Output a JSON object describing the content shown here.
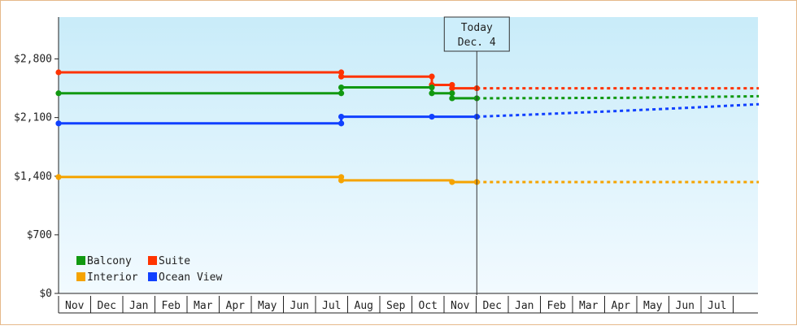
{
  "chart_data": {
    "type": "line",
    "y_ticks": [
      {
        "value": 0,
        "label": "$0"
      },
      {
        "value": 700,
        "label": "$700"
      },
      {
        "value": 1400,
        "label": "$1,400"
      },
      {
        "value": 2100,
        "label": "$2,100"
      },
      {
        "value": 2800,
        "label": "$2,800"
      }
    ],
    "ylim": [
      0,
      3300
    ],
    "x_categories": [
      "Nov",
      "Dec",
      "Jan",
      "Feb",
      "Mar",
      "Apr",
      "May",
      "Jun",
      "Jul",
      "Aug",
      "Sep",
      "Oct",
      "Nov",
      "Dec",
      "Jan",
      "Feb",
      "Mar",
      "Apr",
      "May",
      "Jun",
      "Jul"
    ],
    "xlim": [
      0,
      21.8
    ],
    "today": {
      "line1": "Today",
      "line2": "Dec. 4",
      "x": 13.02
    },
    "legend": [
      {
        "name": "Balcony",
        "color": "#119911"
      },
      {
        "name": "Suite",
        "color": "#ff3300"
      },
      {
        "name": "Interior",
        "color": "#f5a300"
      },
      {
        "name": "Ocean View",
        "color": "#1040ff"
      }
    ],
    "series": [
      {
        "name": "Suite",
        "color": "#ff3300",
        "historical": [
          [
            0,
            2640
          ],
          [
            8.8,
            2640
          ],
          [
            8.8,
            2590
          ],
          [
            11.62,
            2590
          ],
          [
            11.62,
            2490
          ],
          [
            12.25,
            2490
          ],
          [
            12.25,
            2450
          ],
          [
            13.02,
            2450
          ]
        ],
        "points": [
          [
            0,
            2640
          ],
          [
            8.8,
            2640
          ],
          [
            8.8,
            2590
          ],
          [
            11.62,
            2590
          ],
          [
            11.62,
            2490
          ],
          [
            12.25,
            2490
          ],
          [
            12.25,
            2450
          ],
          [
            13.02,
            2450
          ]
        ],
        "forecast": [
          [
            13.02,
            2450
          ],
          [
            21.8,
            2450
          ]
        ]
      },
      {
        "name": "Balcony",
        "color": "#119911",
        "historical": [
          [
            0,
            2390
          ],
          [
            8.8,
            2390
          ],
          [
            8.8,
            2460
          ],
          [
            11.62,
            2460
          ],
          [
            11.62,
            2390
          ],
          [
            12.25,
            2390
          ],
          [
            12.25,
            2330
          ],
          [
            13.02,
            2330
          ]
        ],
        "points": [
          [
            0,
            2390
          ],
          [
            8.8,
            2390
          ],
          [
            8.8,
            2460
          ],
          [
            11.62,
            2460
          ],
          [
            11.62,
            2390
          ],
          [
            12.25,
            2390
          ],
          [
            12.25,
            2330
          ],
          [
            13.02,
            2330
          ]
        ],
        "forecast": [
          [
            13.02,
            2330
          ],
          [
            17.5,
            2335
          ],
          [
            21.8,
            2355
          ]
        ]
      },
      {
        "name": "Ocean View",
        "color": "#1040ff",
        "historical": [
          [
            0,
            2030
          ],
          [
            8.8,
            2030
          ],
          [
            8.8,
            2110
          ],
          [
            11.62,
            2110
          ],
          [
            13.02,
            2110
          ]
        ],
        "points": [
          [
            0,
            2030
          ],
          [
            8.8,
            2030
          ],
          [
            8.8,
            2110
          ],
          [
            11.62,
            2110
          ],
          [
            13.02,
            2110
          ]
        ],
        "forecast": [
          [
            13.02,
            2110
          ],
          [
            15,
            2140
          ],
          [
            17.5,
            2180
          ],
          [
            19.5,
            2215
          ],
          [
            21.8,
            2260
          ]
        ]
      },
      {
        "name": "Interior",
        "color": "#f5a300",
        "historical": [
          [
            0,
            1390
          ],
          [
            8.8,
            1390
          ],
          [
            8.8,
            1350
          ],
          [
            12.25,
            1350
          ],
          [
            12.25,
            1330
          ],
          [
            13.02,
            1330
          ]
        ],
        "points": [
          [
            0,
            1390
          ],
          [
            8.8,
            1390
          ],
          [
            8.8,
            1350
          ],
          [
            12.25,
            1330
          ],
          [
            13.02,
            1330
          ]
        ],
        "forecast": [
          [
            13.02,
            1330
          ],
          [
            21.8,
            1330
          ]
        ]
      }
    ]
  }
}
